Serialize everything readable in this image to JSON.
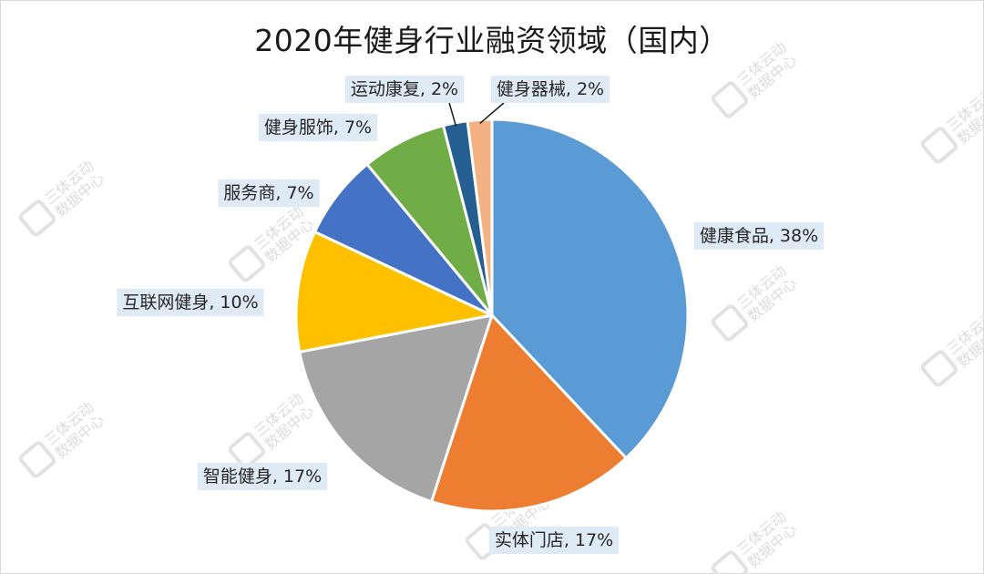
{
  "chart_data": {
    "type": "pie",
    "title": "2020年健身行业融资领域（国内）",
    "categories": [
      "健康食品",
      "实体门店",
      "智能健身",
      "互联网健身",
      "服务商",
      "健身服饰",
      "运动康复",
      "健身器械"
    ],
    "values": [
      38,
      17,
      17,
      10,
      7,
      7,
      2,
      2
    ],
    "labels": [
      "健康食品, 38%",
      "实体门店, 17%",
      "智能健身, 17%",
      "互联网健身, 10%",
      "服务商, 7%",
      "健身服饰, 7%",
      "运动康复, 2%",
      "健身器械, 2%"
    ],
    "colors": [
      "#5b9bd5",
      "#ed7d31",
      "#a5a5a5",
      "#ffc000",
      "#4472c4",
      "#70ad47",
      "#255e91",
      "#f4b183"
    ],
    "start_angle_deg": 0,
    "direction": "clockwise",
    "legend": "none"
  },
  "watermark": {
    "line1": "三体云动",
    "line2": "数据中心"
  }
}
